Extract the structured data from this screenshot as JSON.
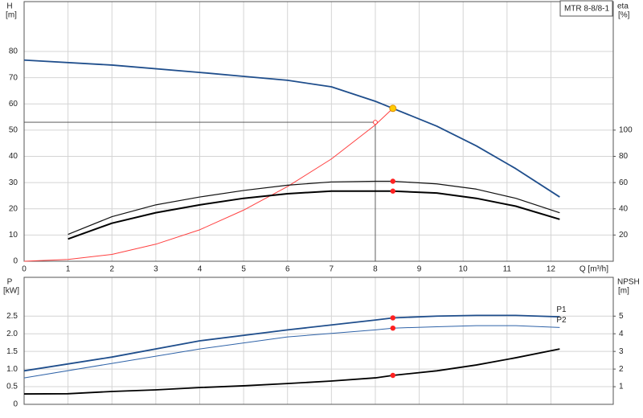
{
  "chart_data": [
    {
      "type": "line",
      "legend_label": "MTR 8-8/8-1",
      "ylabel": "H",
      "yunit": "[m]",
      "y2label": "eta",
      "y2unit": "[%]",
      "xlabel": "Q [m³/h]",
      "xlim": [
        0,
        13.42
      ],
      "xticks": [
        0,
        1,
        2,
        3,
        4,
        5,
        6,
        7,
        8,
        9,
        10,
        11,
        12
      ],
      "ylim": [
        0,
        99
      ],
      "yticks": [
        0,
        10,
        20,
        30,
        40,
        50,
        60,
        70,
        80
      ],
      "y2lim": [
        0,
        198
      ],
      "y2ticks": [
        20,
        40,
        60,
        80,
        100
      ],
      "grid": true,
      "operating_q": 8.4,
      "requested_point": {
        "q": 8,
        "h": 53
      },
      "requested_color": "#ff4040",
      "series": [
        {
          "color": "#1f4e8c",
          "width": 1.8,
          "marker_color": "#ffcc00",
          "x": [
            0,
            2,
            4,
            5,
            6,
            7,
            8,
            8.4,
            9.4,
            10.3,
            11.2,
            12.2
          ],
          "values": [
            76.7,
            74.8,
            72,
            70.5,
            69,
            66.5,
            61,
            58.3,
            51.5,
            44,
            35.3,
            24.5
          ]
        },
        {
          "color": "#ff4040",
          "width": 1,
          "x": [
            0,
            1,
            2,
            3,
            4,
            5,
            6,
            7,
            8,
            8.4
          ],
          "values": [
            0,
            0.7,
            2.6,
            6.5,
            12,
            19.5,
            28.5,
            39,
            52,
            58.3
          ]
        },
        {
          "color": "#111111",
          "width": 1.2,
          "axis": "y2",
          "marker_color": "#ff2020",
          "x": [
            1,
            2,
            3,
            4,
            5,
            6,
            7,
            8,
            8.4,
            9.4,
            10.3,
            11.2,
            12.2
          ],
          "values": [
            20.5,
            34,
            43,
            49,
            54,
            58,
            60.5,
            61,
            61,
            59,
            55,
            48,
            37
          ]
        },
        {
          "color": "#000000",
          "width": 2,
          "axis": "y2",
          "marker_color": "#ff2020",
          "x": [
            1,
            2,
            3,
            4,
            5,
            6,
            7,
            8,
            8.4,
            9.4,
            10.3,
            11.2,
            12.2
          ],
          "values": [
            17,
            29,
            37,
            43,
            48,
            51.5,
            53.5,
            53.5,
            53.5,
            52,
            48,
            42,
            32
          ]
        }
      ]
    },
    {
      "type": "line",
      "sharex": true,
      "ylabel": "P",
      "yunit": "[kW]",
      "y2label": "NPSH",
      "y2unit": "[m]",
      "ylim": [
        0,
        3.6
      ],
      "yticks": [
        0,
        0.5,
        {
          "value": 1,
          "label": "1.0"
        },
        1.5,
        {
          "value": 2,
          "label": "2.0"
        },
        2.5
      ],
      "y2lim": [
        0,
        7.2
      ],
      "y2ticks": [
        1,
        2,
        3,
        4,
        5
      ],
      "grid": true,
      "operating_q": 8.4,
      "series": [
        {
          "name": "P1",
          "color": "#1f4e8c",
          "width": 1.8,
          "marker_color": "#ff2020",
          "x": [
            0,
            2,
            4,
            6,
            8,
            8.4,
            9.4,
            10.3,
            11.2,
            12.2
          ],
          "values": [
            0.95,
            1.34,
            1.8,
            2.11,
            2.39,
            2.45,
            2.5,
            2.52,
            2.52,
            2.48
          ]
        },
        {
          "name": "P2",
          "color": "#2f63a8",
          "width": 1,
          "marker_color": "#ff2020",
          "x": [
            0,
            2,
            4,
            6,
            8,
            8.4,
            9.4,
            10.3,
            11.2,
            12.2
          ],
          "values": [
            0.75,
            1.16,
            1.57,
            1.91,
            2.11,
            2.16,
            2.2,
            2.23,
            2.23,
            2.18
          ]
        },
        {
          "color": "#000000",
          "width": 1.8,
          "axis": "y2",
          "marker_color": "#ff2020",
          "x": [
            0,
            1,
            2,
            3,
            4,
            5,
            6,
            7,
            8,
            8.4,
            9.4,
            10.3,
            11.2,
            12.2
          ],
          "values": [
            0.59,
            0.6,
            0.73,
            0.82,
            0.95,
            1.05,
            1.18,
            1.32,
            1.5,
            1.64,
            1.9,
            2.23,
            2.64,
            3.14
          ]
        }
      ]
    }
  ]
}
